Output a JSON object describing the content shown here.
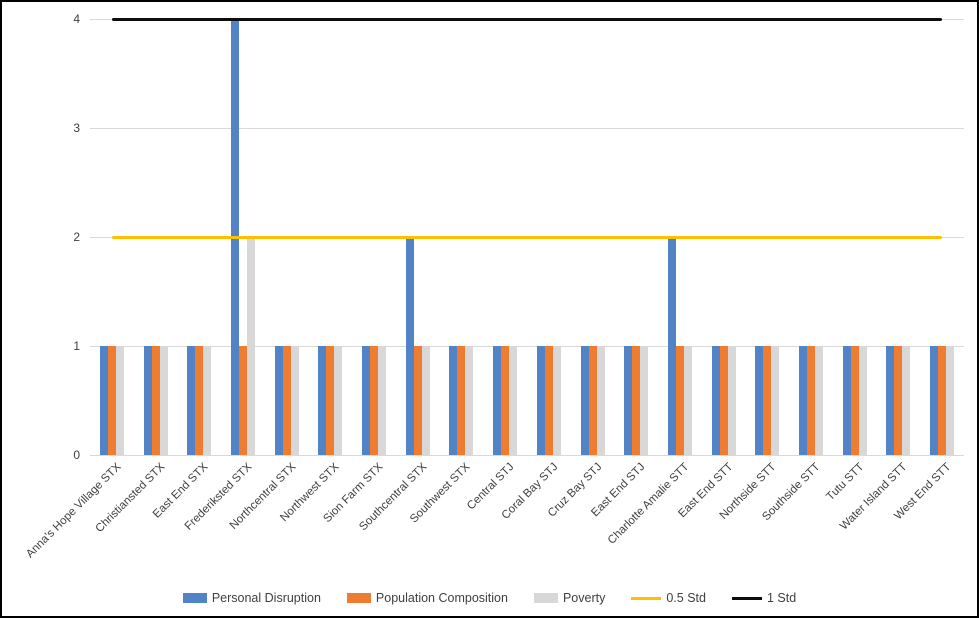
{
  "chart_data": {
    "type": "bar",
    "title": "",
    "xlabel": "",
    "ylabel": "",
    "ylim": [
      0,
      4
    ],
    "yticks": [
      0,
      1,
      2,
      3,
      4
    ],
    "grid": true,
    "legend_position": "bottom",
    "categories": [
      "Anna's Hope Village STX",
      "Christiansted STX",
      "East End STX",
      "Frederiksted STX",
      "Northcentral STX",
      "Northwest STX",
      "Sion Farm STX",
      "Southcentral STX",
      "Southwest STX",
      "Central STJ",
      "Coral Bay STJ",
      "Cruz Bay STJ",
      "East End STJ",
      "Charlotte Amalie STT",
      "East End STT",
      "Northside STT",
      "Southside STT",
      "Tutu STT",
      "Water Island STT",
      "West End STT"
    ],
    "series": [
      {
        "name": "Personal Disruption",
        "color": "#5183c6",
        "values": [
          1,
          1,
          1,
          4,
          1,
          1,
          1,
          2,
          1,
          1,
          1,
          1,
          1,
          2,
          1,
          1,
          1,
          1,
          1,
          1
        ]
      },
      {
        "name": "Population Composition",
        "color": "#ee7d31",
        "values": [
          1,
          1,
          1,
          1,
          1,
          1,
          1,
          1,
          1,
          1,
          1,
          1,
          1,
          1,
          1,
          1,
          1,
          1,
          1,
          1
        ]
      },
      {
        "name": "Poverty",
        "color": "#d8d8d8",
        "values": [
          1,
          1,
          1,
          2,
          1,
          1,
          1,
          1,
          1,
          1,
          1,
          1,
          1,
          1,
          1,
          1,
          1,
          1,
          1,
          1
        ]
      }
    ],
    "ref_lines": [
      {
        "name": "0.5 Std",
        "color": "#ffc000",
        "value": 2
      },
      {
        "name": "1 Std",
        "color": "#0d0d0d",
        "value": 4
      }
    ]
  },
  "colors": {
    "gridline": "#d9d9d9",
    "tick_text": "#3f3f3f",
    "background": "#ffffff",
    "border": "#000000"
  }
}
